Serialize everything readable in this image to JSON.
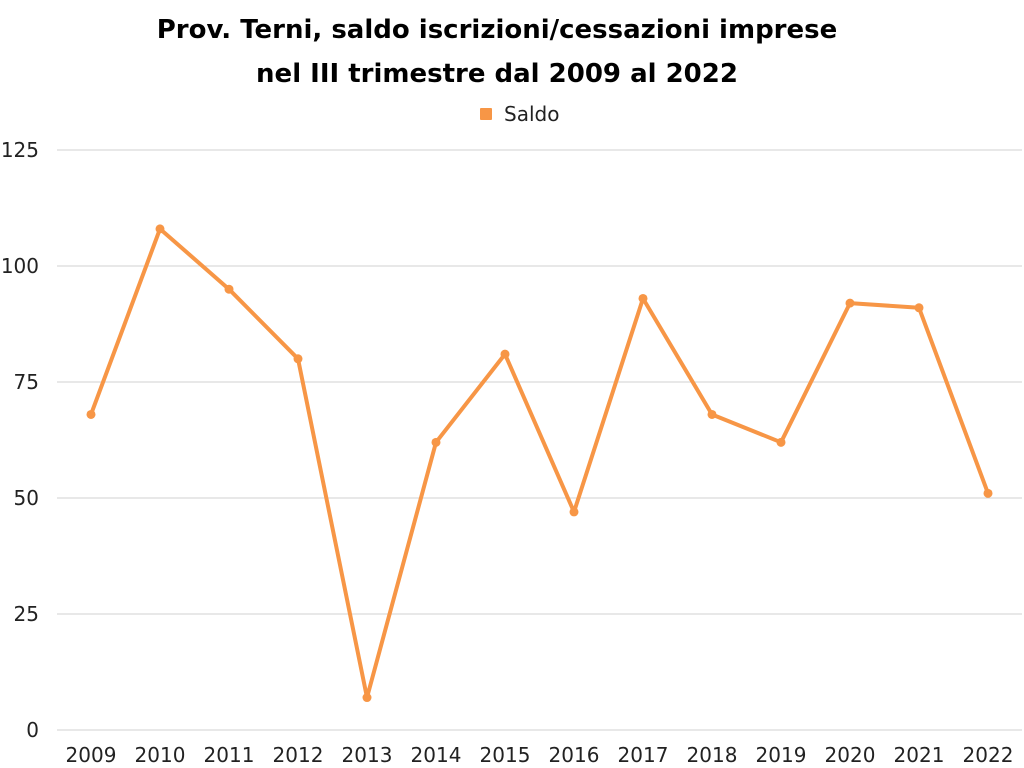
{
  "chart_data": {
    "type": "line",
    "title_line1": "Prov. Terni, saldo iscrizioni/cessazioni imprese",
    "title_line2": "nel III trimestre dal 2009 al 2022",
    "categories": [
      "2009",
      "2010",
      "2011",
      "2012",
      "2013",
      "2014",
      "2015",
      "2016",
      "2017",
      "2018",
      "2019",
      "2020",
      "2021",
      "2022"
    ],
    "series": [
      {
        "name": "Saldo",
        "values": [
          68,
          108,
          95,
          80,
          7,
          62,
          81,
          47,
          93,
          68,
          62,
          92,
          91,
          51
        ],
        "color": "#f79646"
      }
    ],
    "yticks": [
      0,
      25,
      50,
      75,
      100,
      125
    ],
    "ylim": [
      0,
      125
    ],
    "grid": true,
    "legend_position": "top-center",
    "gridline_color": "#d0d0d0"
  }
}
